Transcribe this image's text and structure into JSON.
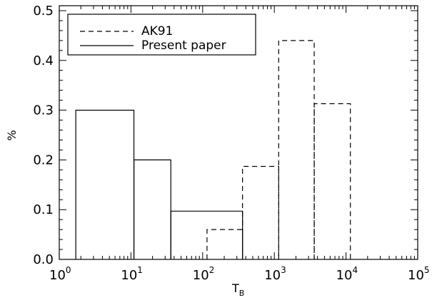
{
  "chart_data": {
    "type": "histogram",
    "xlabel": "T",
    "xlabel_sub": "B",
    "ylabel": "%",
    "xscale": "log",
    "xlim": [
      1,
      100000
    ],
    "ylim": [
      0,
      0.51
    ],
    "x_ticks": [
      {
        "base": "10",
        "exp": "0",
        "value": 1
      },
      {
        "base": "10",
        "exp": "1",
        "value": 10
      },
      {
        "base": "10",
        "exp": "2",
        "value": 100
      },
      {
        "base": "10",
        "exp": "3",
        "value": 1000
      },
      {
        "base": "10",
        "exp": "4",
        "value": 10000
      },
      {
        "base": "10",
        "exp": "5",
        "value": 100000
      }
    ],
    "y_ticks": [
      "0.0",
      "0.1",
      "0.2",
      "0.3",
      "0.4",
      "0.5"
    ],
    "grid": false,
    "legend_position": "top-left",
    "series": [
      {
        "name": "AK91",
        "style": "dashed",
        "bins": [
          {
            "x0": 115,
            "x1": 360,
            "y": 0.06
          },
          {
            "x0": 360,
            "x1": 1150,
            "y": 0.187
          },
          {
            "x0": 1150,
            "x1": 3600,
            "y": 0.44
          },
          {
            "x0": 3600,
            "x1": 11500,
            "y": 0.313
          }
        ]
      },
      {
        "name": "Present paper",
        "style": "solid",
        "bins": [
          {
            "x0": 1.7,
            "x1": 11,
            "y": 0.3
          },
          {
            "x0": 11,
            "x1": 36,
            "y": 0.2
          },
          {
            "x0": 36,
            "x1": 360,
            "y": 0.097
          }
        ]
      }
    ]
  }
}
